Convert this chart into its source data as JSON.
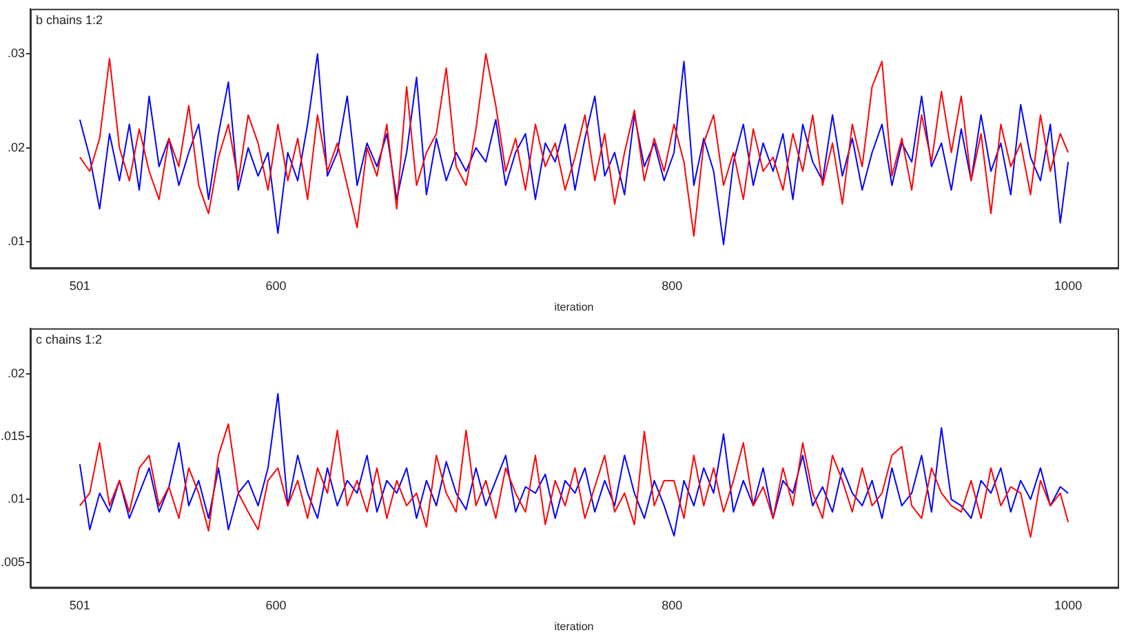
{
  "chart_data": [
    {
      "type": "line",
      "title": "b chains 1:2",
      "xlabel": "iteration",
      "xlim": [
        476,
        1025
      ],
      "xticks": [
        501,
        600,
        800,
        1000
      ],
      "ylim": [
        0.0072,
        0.0348
      ],
      "yticks": [
        {
          "value": 0.01,
          "label": ".01"
        },
        {
          "value": 0.02,
          "label": ".02"
        },
        {
          "value": 0.03,
          "label": ".03"
        }
      ],
      "grid": false,
      "legend": false,
      "marker": "none",
      "line_style": "solid",
      "x": [
        501,
        506,
        511,
        516,
        521,
        526,
        531,
        536,
        541,
        546,
        551,
        556,
        561,
        566,
        571,
        576,
        581,
        586,
        591,
        596,
        601,
        606,
        611,
        616,
        621,
        626,
        631,
        636,
        641,
        646,
        651,
        656,
        661,
        666,
        671,
        676,
        681,
        686,
        691,
        696,
        701,
        706,
        711,
        716,
        721,
        726,
        731,
        736,
        741,
        746,
        751,
        756,
        761,
        766,
        771,
        776,
        781,
        786,
        791,
        796,
        801,
        806,
        811,
        816,
        821,
        826,
        831,
        836,
        841,
        846,
        851,
        856,
        861,
        866,
        871,
        876,
        881,
        886,
        891,
        896,
        901,
        906,
        911,
        916,
        921,
        926,
        931,
        936,
        941,
        946,
        951,
        956,
        961,
        966,
        971,
        976,
        981,
        986,
        991,
        996,
        1000
      ],
      "series": [
        {
          "color": "#ff0000",
          "values": [
            0.019,
            0.0175,
            0.021,
            0.0295,
            0.02,
            0.0165,
            0.022,
            0.0175,
            0.0145,
            0.021,
            0.018,
            0.0245,
            0.016,
            0.013,
            0.019,
            0.0225,
            0.0165,
            0.0235,
            0.0205,
            0.0155,
            0.0225,
            0.0165,
            0.021,
            0.0145,
            0.0235,
            0.0175,
            0.0205,
            0.016,
            0.0115,
            0.02,
            0.017,
            0.0225,
            0.0135,
            0.0265,
            0.016,
            0.0195,
            0.0215,
            0.0285,
            0.018,
            0.016,
            0.022,
            0.03,
            0.0245,
            0.0175,
            0.021,
            0.0155,
            0.0225,
            0.018,
            0.0205,
            0.0155,
            0.019,
            0.0235,
            0.0165,
            0.0215,
            0.014,
            0.0195,
            0.024,
            0.0165,
            0.021,
            0.0175,
            0.0225,
            0.0185,
            0.0106,
            0.0205,
            0.0235,
            0.016,
            0.0195,
            0.0145,
            0.022,
            0.0175,
            0.019,
            0.0155,
            0.0215,
            0.0175,
            0.0235,
            0.016,
            0.0205,
            0.014,
            0.0225,
            0.018,
            0.0265,
            0.0292,
            0.017,
            0.021,
            0.0155,
            0.0235,
            0.0185,
            0.026,
            0.0195,
            0.0255,
            0.0165,
            0.0215,
            0.013,
            0.0225,
            0.018,
            0.0205,
            0.015,
            0.0235,
            0.0175,
            0.0215,
            0.0195
          ]
        },
        {
          "color": "#0000ff",
          "values": [
            0.023,
            0.019,
            0.0135,
            0.0215,
            0.0165,
            0.0225,
            0.0155,
            0.0255,
            0.018,
            0.021,
            0.016,
            0.0195,
            0.0225,
            0.0145,
            0.0215,
            0.027,
            0.0155,
            0.02,
            0.017,
            0.0195,
            0.0109,
            0.0195,
            0.0165,
            0.0225,
            0.03,
            0.017,
            0.0195,
            0.0255,
            0.016,
            0.0205,
            0.018,
            0.0215,
            0.0145,
            0.0195,
            0.0275,
            0.015,
            0.021,
            0.0165,
            0.0195,
            0.0175,
            0.02,
            0.0185,
            0.023,
            0.016,
            0.0195,
            0.0215,
            0.0145,
            0.0205,
            0.0185,
            0.0225,
            0.0155,
            0.021,
            0.0255,
            0.017,
            0.0195,
            0.015,
            0.0235,
            0.018,
            0.0205,
            0.0165,
            0.0195,
            0.0292,
            0.016,
            0.021,
            0.0175,
            0.0097,
            0.0185,
            0.0225,
            0.016,
            0.0205,
            0.0175,
            0.0215,
            0.0145,
            0.0225,
            0.0185,
            0.0165,
            0.0235,
            0.017,
            0.021,
            0.0155,
            0.0195,
            0.0225,
            0.016,
            0.0205,
            0.0185,
            0.0255,
            0.018,
            0.0205,
            0.0155,
            0.022,
            0.0165,
            0.0235,
            0.0175,
            0.0205,
            0.015,
            0.0246,
            0.019,
            0.0165,
            0.0225,
            0.012,
            0.0185
          ]
        }
      ]
    },
    {
      "type": "line",
      "title": "c chains 1:2",
      "xlabel": "iteration",
      "xlim": [
        476,
        1025
      ],
      "xticks": [
        501,
        600,
        800,
        1000
      ],
      "ylim": [
        0.003,
        0.0236
      ],
      "yticks": [
        {
          "value": 0.005,
          "label": ".005"
        },
        {
          "value": 0.01,
          "label": ".01"
        },
        {
          "value": 0.015,
          "label": ".015"
        },
        {
          "value": 0.02,
          "label": ".02"
        }
      ],
      "grid": false,
      "legend": false,
      "marker": "none",
      "line_style": "solid",
      "x": [
        501,
        506,
        511,
        516,
        521,
        526,
        531,
        536,
        541,
        546,
        551,
        556,
        561,
        566,
        571,
        576,
        581,
        586,
        591,
        596,
        601,
        606,
        611,
        616,
        621,
        626,
        631,
        636,
        641,
        646,
        651,
        656,
        661,
        666,
        671,
        676,
        681,
        686,
        691,
        696,
        701,
        706,
        711,
        716,
        721,
        726,
        731,
        736,
        741,
        746,
        751,
        756,
        761,
        766,
        771,
        776,
        781,
        786,
        791,
        796,
        801,
        806,
        811,
        816,
        821,
        826,
        831,
        836,
        841,
        846,
        851,
        856,
        861,
        866,
        871,
        876,
        881,
        886,
        891,
        896,
        901,
        906,
        911,
        916,
        921,
        926,
        931,
        936,
        941,
        946,
        951,
        956,
        961,
        966,
        971,
        976,
        981,
        986,
        991,
        996,
        1000
      ],
      "series": [
        {
          "color": "#ff0000",
          "values": [
            0.0095,
            0.0105,
            0.0145,
            0.0095,
            0.0115,
            0.009,
            0.0125,
            0.0135,
            0.0095,
            0.011,
            0.0085,
            0.0125,
            0.0105,
            0.0075,
            0.0135,
            0.016,
            0.0105,
            0.009,
            0.0076,
            0.0115,
            0.0125,
            0.0095,
            0.0115,
            0.0085,
            0.0125,
            0.0105,
            0.0155,
            0.0095,
            0.0115,
            0.009,
            0.0125,
            0.0085,
            0.0115,
            0.0095,
            0.0105,
            0.0078,
            0.0135,
            0.0105,
            0.009,
            0.0155,
            0.0095,
            0.0115,
            0.0085,
            0.0125,
            0.0105,
            0.009,
            0.0135,
            0.008,
            0.0115,
            0.0095,
            0.0125,
            0.0085,
            0.011,
            0.0135,
            0.009,
            0.0105,
            0.008,
            0.0154,
            0.0095,
            0.0115,
            0.0115,
            0.0085,
            0.0135,
            0.0095,
            0.0125,
            0.009,
            0.0115,
            0.0145,
            0.0095,
            0.011,
            0.0085,
            0.0125,
            0.0095,
            0.0145,
            0.0105,
            0.0085,
            0.0135,
            0.0115,
            0.009,
            0.0125,
            0.0095,
            0.0105,
            0.0135,
            0.0142,
            0.0095,
            0.0085,
            0.0125,
            0.0105,
            0.0095,
            0.009,
            0.0115,
            0.0085,
            0.0125,
            0.0095,
            0.011,
            0.0105,
            0.007,
            0.0115,
            0.0095,
            0.0105,
            0.0082
          ]
        },
        {
          "color": "#0000ff",
          "values": [
            0.0128,
            0.0076,
            0.0105,
            0.009,
            0.0115,
            0.0085,
            0.0105,
            0.0125,
            0.009,
            0.011,
            0.0145,
            0.0095,
            0.0115,
            0.0085,
            0.0125,
            0.0076,
            0.0105,
            0.0115,
            0.0095,
            0.0125,
            0.0184,
            0.0095,
            0.0135,
            0.0105,
            0.0085,
            0.0125,
            0.0095,
            0.0115,
            0.0105,
            0.0135,
            0.009,
            0.0115,
            0.0105,
            0.0125,
            0.0085,
            0.0115,
            0.0095,
            0.013,
            0.0105,
            0.0092,
            0.0125,
            0.0095,
            0.0115,
            0.0135,
            0.009,
            0.011,
            0.0105,
            0.012,
            0.0085,
            0.0115,
            0.0105,
            0.0125,
            0.009,
            0.0115,
            0.0095,
            0.0135,
            0.0105,
            0.0085,
            0.0115,
            0.0095,
            0.0071,
            0.0115,
            0.0095,
            0.0125,
            0.0105,
            0.0152,
            0.009,
            0.0115,
            0.0095,
            0.0125,
            0.0085,
            0.0115,
            0.0105,
            0.0135,
            0.0095,
            0.011,
            0.009,
            0.0125,
            0.0105,
            0.0095,
            0.0115,
            0.0085,
            0.0125,
            0.0095,
            0.0105,
            0.0135,
            0.009,
            0.0157,
            0.01,
            0.0095,
            0.0085,
            0.0115,
            0.0105,
            0.0125,
            0.009,
            0.0115,
            0.01,
            0.0125,
            0.0095,
            0.011,
            0.0105
          ]
        }
      ]
    }
  ]
}
